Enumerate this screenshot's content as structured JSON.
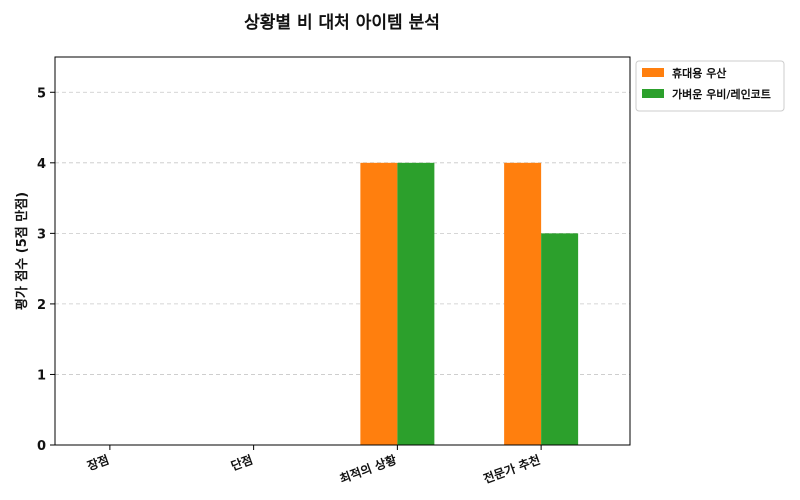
{
  "chart_data": {
    "type": "bar",
    "title": "상황별 비 대처 아이템 분석",
    "xlabel": "",
    "ylabel": "평가 점수 (5점 만점)",
    "categories": [
      "장점",
      "단점",
      "최적의 상황",
      "전문가 추천"
    ],
    "series": [
      {
        "name": "휴대용 우산",
        "color": "#ff7f0e",
        "values": [
          0,
          0,
          4,
          4
        ]
      },
      {
        "name": "가벼운 우비/레인코트",
        "color": "#2ca02c",
        "values": [
          0,
          0,
          4,
          3
        ]
      }
    ],
    "ylim": [
      0,
      5.5
    ],
    "yticks": [
      0,
      1,
      2,
      3,
      4,
      5
    ],
    "grid": "y-dashed",
    "legend": "outside-top-right"
  }
}
